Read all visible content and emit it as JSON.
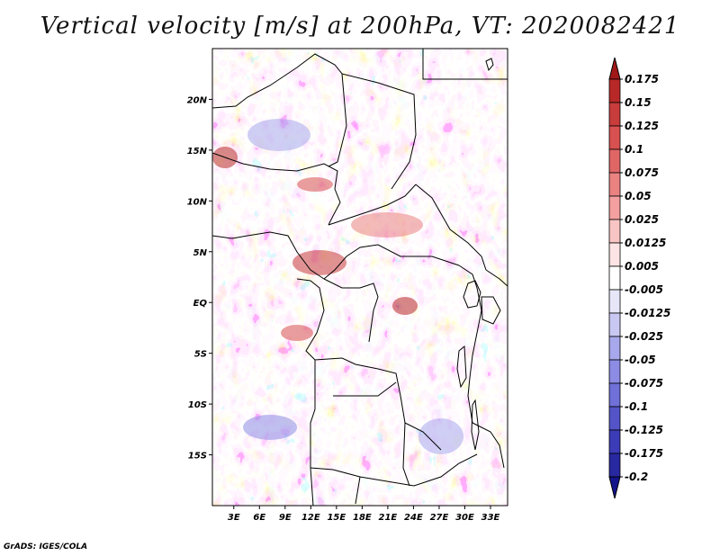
{
  "title": "Vertical velocity [m/s] at 200hPa, VT: 2020082421",
  "credit": "GrADS: IGES/COLA",
  "map": {
    "lat_labels": [
      "20N",
      "15N",
      "10N",
      "5N",
      "EQ",
      "5S",
      "10S",
      "15S"
    ],
    "lat_values": [
      20,
      15,
      10,
      5,
      0,
      -5,
      -10,
      -15
    ],
    "lon_labels": [
      "3E",
      "6E",
      "9E",
      "12E",
      "15E",
      "18E",
      "21E",
      "24E",
      "27E",
      "30E",
      "33E"
    ],
    "lon_values": [
      3,
      6,
      9,
      12,
      15,
      18,
      21,
      24,
      27,
      30,
      33
    ],
    "lon_range": [
      0.5,
      35
    ],
    "lat_range": [
      -20,
      25
    ]
  },
  "colorbar": {
    "labels": [
      "0.175",
      "0.15",
      "0.125",
      "0.1",
      "0.075",
      "0.05",
      "0.025",
      "0.0125",
      "0.005",
      "-0.005",
      "-0.0125",
      "-0.025",
      "-0.05",
      "-0.075",
      "-0.1",
      "-0.125",
      "-0.175",
      "-0.2"
    ],
    "colors": [
      "#a01818",
      "#b82828",
      "#c83c3c",
      "#d85050",
      "#e06666",
      "#ea8282",
      "#f4a0a0",
      "#f8c4c4",
      "#fce4e4",
      "#ffffff",
      "#e6e6f8",
      "#c8c8f2",
      "#a8a8ec",
      "#8c8ce4",
      "#7070d8",
      "#5454c8",
      "#3c3cb8",
      "#2828a0",
      "#14148c"
    ]
  }
}
